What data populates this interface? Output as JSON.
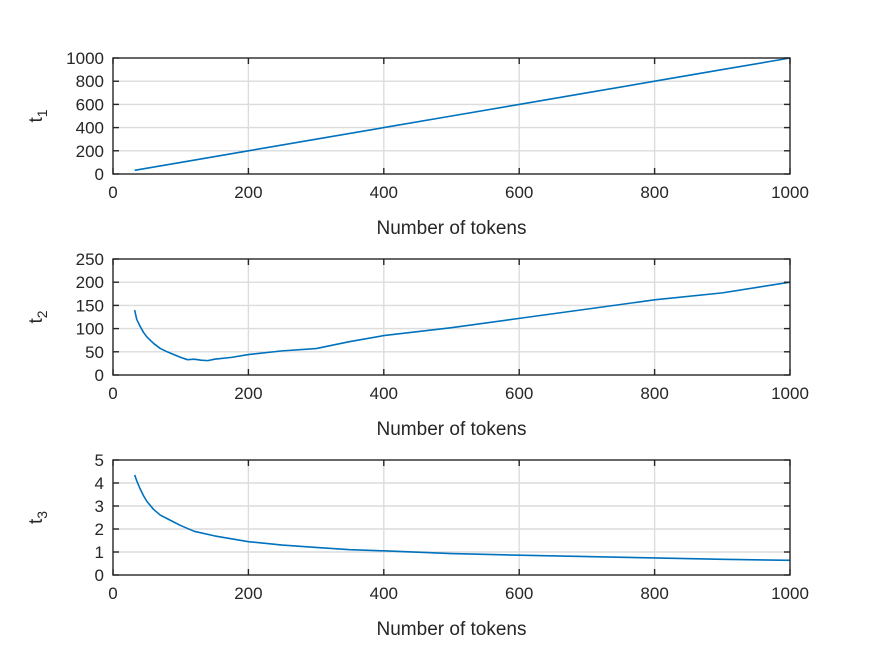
{
  "colors": {
    "series": "#0072bd",
    "grid": "#dcdcdc",
    "axes": "#262626"
  },
  "chart_data": [
    {
      "type": "line",
      "xlabel": "Number of tokens",
      "ylabel_base": "t",
      "ylabel_sub": "1",
      "xlim": [
        0,
        1000
      ],
      "ylim": [
        0,
        1000
      ],
      "xticks": [
        0,
        200,
        400,
        600,
        800,
        1000
      ],
      "yticks": [
        0,
        200,
        400,
        600,
        800,
        1000
      ],
      "grid": true,
      "series": [
        {
          "x": [
            32,
            100,
            200,
            300,
            400,
            500,
            600,
            700,
            800,
            900,
            1000
          ],
          "y": [
            32,
            100,
            200,
            300,
            400,
            500,
            600,
            700,
            800,
            900,
            1000
          ]
        }
      ]
    },
    {
      "type": "line",
      "xlabel": "Number of tokens",
      "ylabel_base": "t",
      "ylabel_sub": "2",
      "xlim": [
        0,
        1000
      ],
      "ylim": [
        0,
        250
      ],
      "xticks": [
        0,
        200,
        400,
        600,
        800,
        1000
      ],
      "yticks": [
        0,
        50,
        100,
        150,
        200,
        250
      ],
      "grid": true,
      "series": [
        {
          "x": [
            32,
            35,
            40,
            45,
            50,
            55,
            60,
            70,
            80,
            90,
            100,
            110,
            120,
            130,
            140,
            150,
            175,
            200,
            250,
            300,
            350,
            400,
            500,
            600,
            700,
            800,
            900,
            1000
          ],
          "y": [
            140,
            120,
            105,
            92,
            82,
            75,
            68,
            57,
            50,
            44,
            38,
            33,
            34,
            32,
            31,
            34,
            38,
            44,
            52,
            57,
            72,
            85,
            102,
            122,
            142,
            162,
            177,
            200
          ]
        }
      ]
    },
    {
      "type": "line",
      "xlabel": "Number of tokens",
      "ylabel_base": "t",
      "ylabel_sub": "3",
      "xlim": [
        0,
        1000
      ],
      "ylim": [
        0,
        5
      ],
      "xticks": [
        0,
        200,
        400,
        600,
        800,
        1000
      ],
      "yticks": [
        0,
        1,
        2,
        3,
        4,
        5
      ],
      "grid": true,
      "series": [
        {
          "x": [
            32,
            35,
            40,
            45,
            50,
            60,
            70,
            80,
            90,
            100,
            120,
            150,
            200,
            250,
            300,
            350,
            400,
            500,
            600,
            700,
            800,
            900,
            1000
          ],
          "y": [
            4.35,
            4.1,
            3.75,
            3.45,
            3.2,
            2.85,
            2.6,
            2.45,
            2.3,
            2.15,
            1.9,
            1.7,
            1.45,
            1.3,
            1.2,
            1.1,
            1.05,
            0.93,
            0.86,
            0.8,
            0.74,
            0.68,
            0.64
          ]
        }
      ]
    }
  ]
}
